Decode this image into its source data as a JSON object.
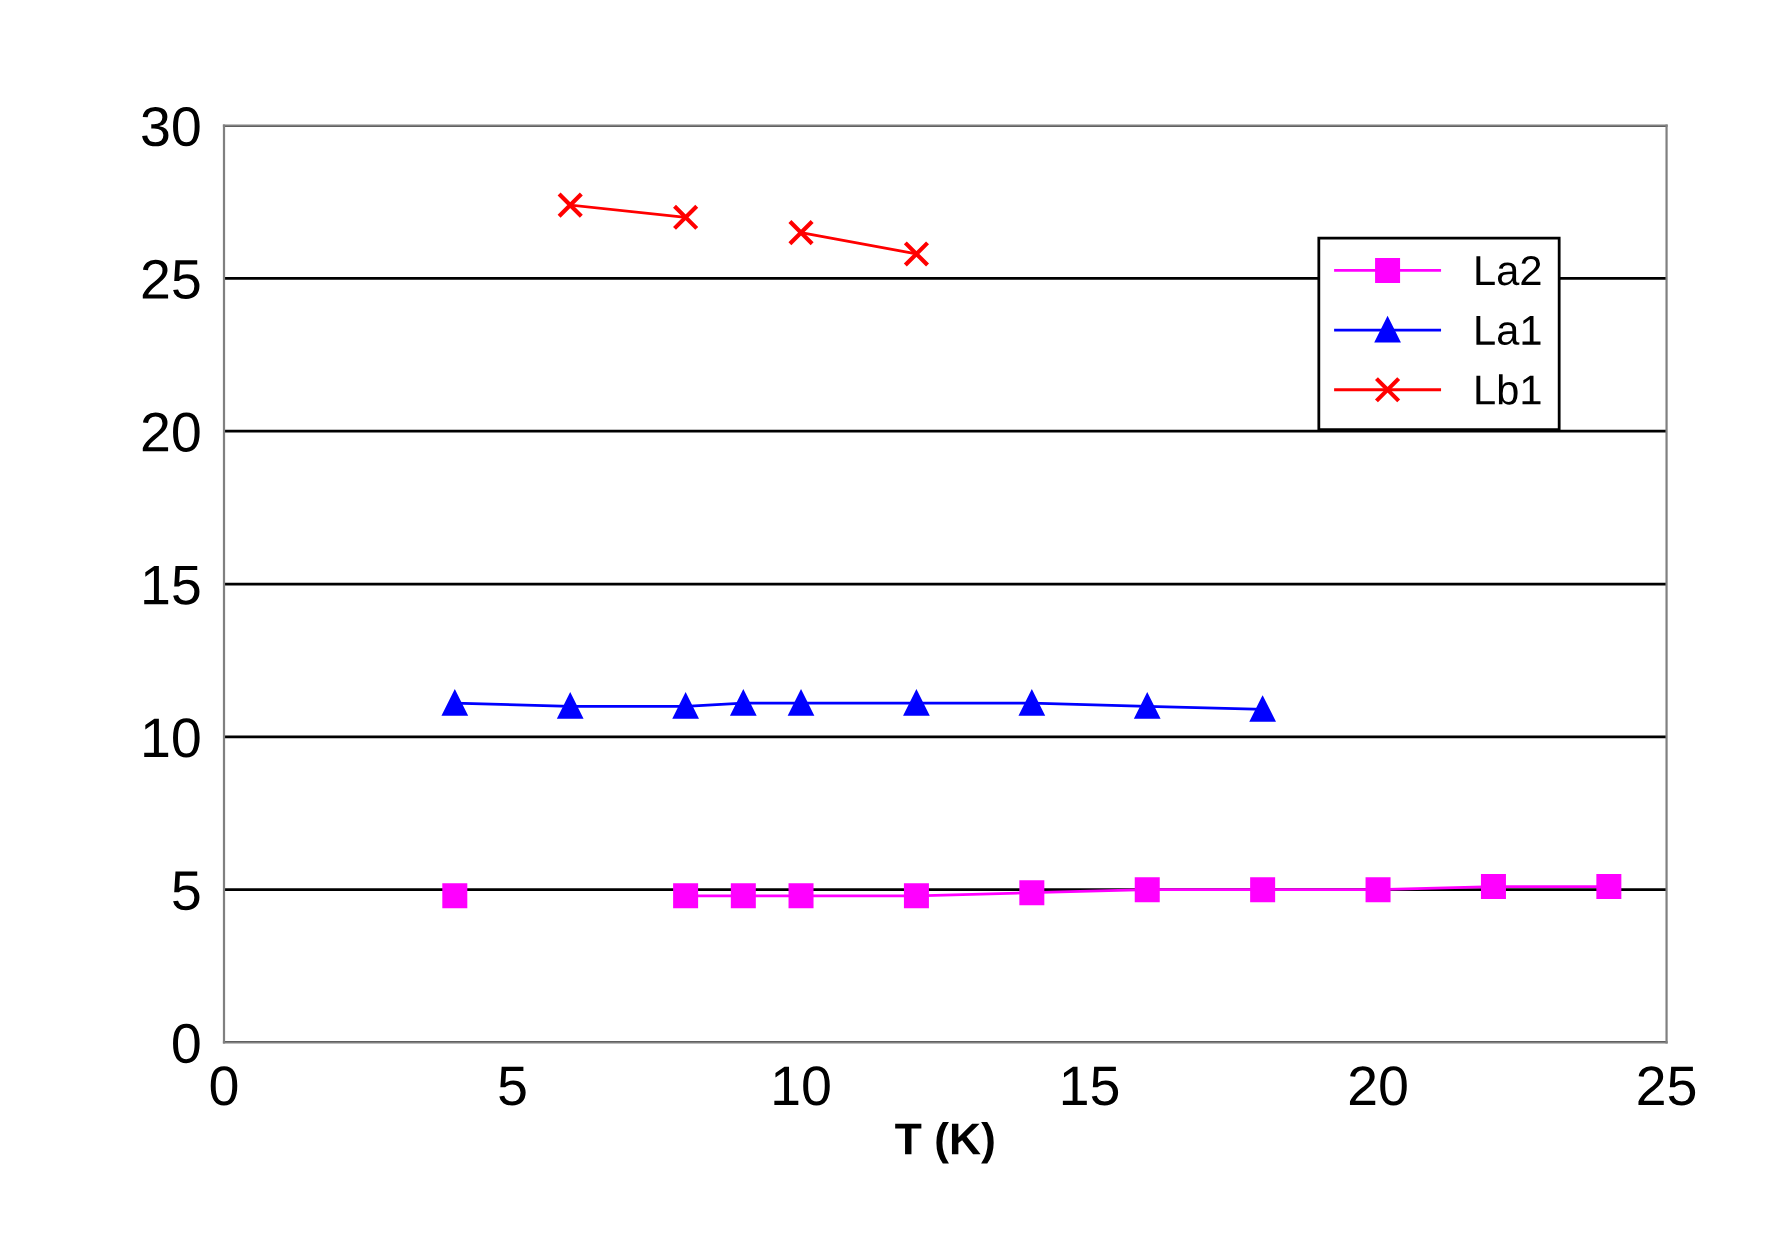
{
  "chart_data": {
    "type": "line",
    "xlabel": "T (K)",
    "xlim": [
      0,
      25
    ],
    "xticks": [
      0,
      5,
      10,
      15,
      20,
      25
    ],
    "ylim": [
      0,
      30
    ],
    "yticks": [
      0,
      5,
      10,
      15,
      20,
      25,
      30
    ],
    "grid": "y",
    "legend": "top right",
    "series": [
      {
        "name": "La2",
        "color": "#ff00ff",
        "marker": "square",
        "x": [
          4,
          6,
          8,
          9,
          10,
          12,
          14,
          16,
          18,
          20,
          22,
          24
        ],
        "values": [
          4.8,
          null,
          4.8,
          4.8,
          4.8,
          4.8,
          4.9,
          5.0,
          5.0,
          5.0,
          5.1,
          5.1
        ]
      },
      {
        "name": "La1",
        "color": "#0000ff",
        "marker": "triangle",
        "x": [
          4,
          6,
          8,
          9,
          10,
          12,
          14,
          16,
          18
        ],
        "values": [
          11.1,
          11.0,
          11.0,
          11.1,
          11.1,
          11.1,
          11.1,
          11.0,
          10.9
        ]
      },
      {
        "name": "Lb1",
        "color": "#ff0000",
        "marker": "cross",
        "x": [
          6,
          8,
          9,
          10,
          12
        ],
        "values": [
          27.4,
          27.0,
          null,
          26.5,
          25.8
        ]
      }
    ]
  }
}
